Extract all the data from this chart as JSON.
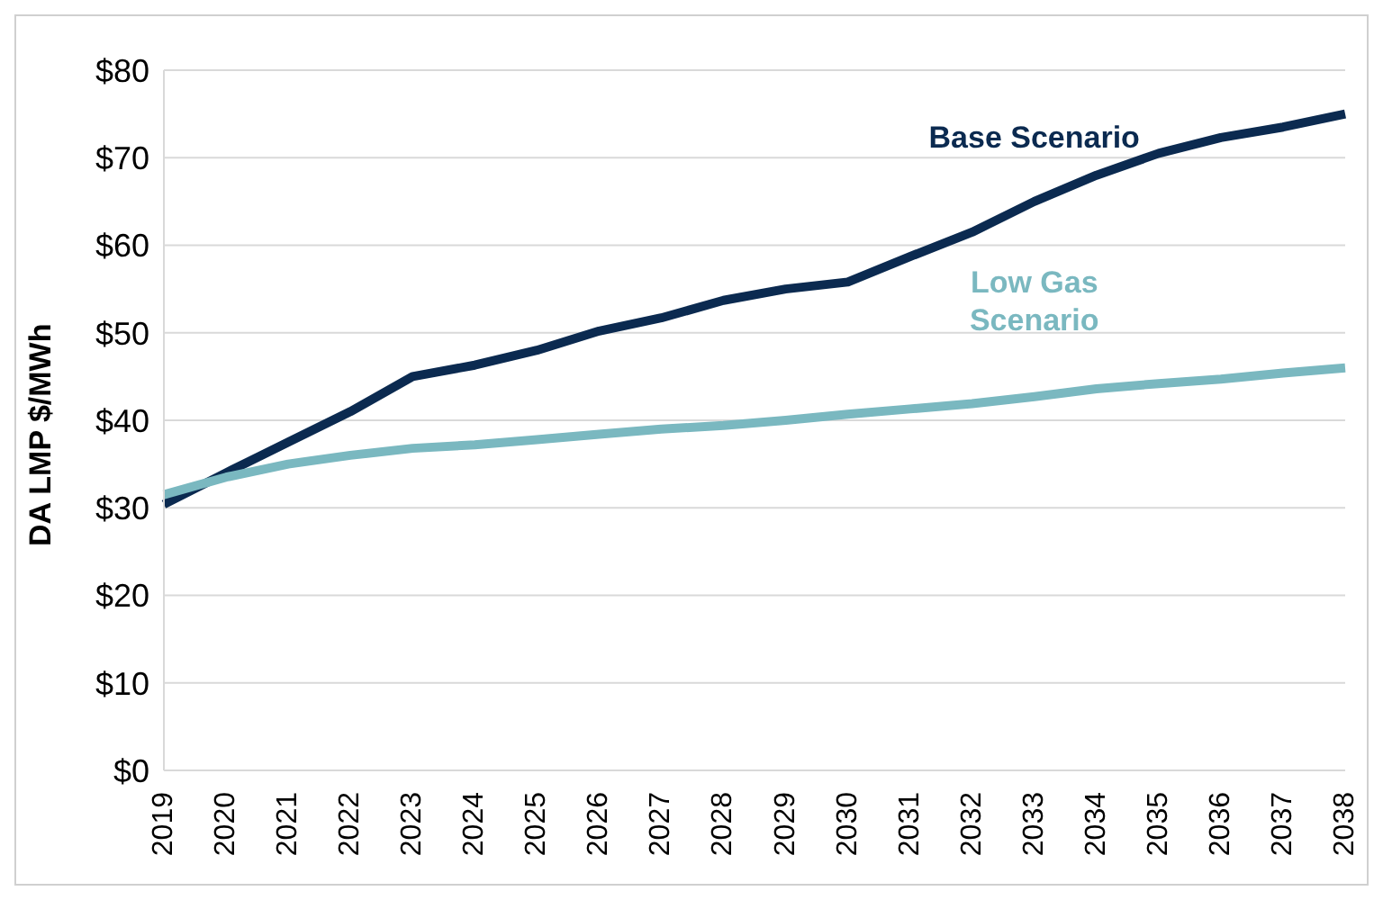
{
  "chart_data": {
    "type": "line",
    "ylabel": "DA LMP $/MWh",
    "categories": [
      "2019",
      "2020",
      "2021",
      "2022",
      "2023",
      "2024",
      "2025",
      "2026",
      "2027",
      "2028",
      "2029",
      "2030",
      "2031",
      "2032",
      "2033",
      "2034",
      "2035",
      "2036",
      "2037",
      "2038"
    ],
    "series": [
      {
        "name": "Base Scenario",
        "color": "#0b2a50",
        "values": [
          30.4,
          34,
          37.5,
          41,
          45,
          46.3,
          48,
          50.2,
          51.7,
          53.7,
          55,
          55.8,
          58.7,
          61.5,
          65,
          68,
          70.5,
          72.3,
          73.5,
          75
        ]
      },
      {
        "name": "Low Gas Scenario",
        "color": "#7ab8c0",
        "values": [
          31.5,
          33.5,
          35,
          36,
          36.8,
          37.2,
          37.8,
          38.4,
          39,
          39.4,
          40,
          40.7,
          41.3,
          41.9,
          42.7,
          43.6,
          44.2,
          44.7,
          45.4,
          46
        ]
      }
    ],
    "ylim": [
      0,
      80
    ],
    "yticks": [
      {
        "value": 0,
        "label": "$0"
      },
      {
        "value": 10,
        "label": "$10"
      },
      {
        "value": 20,
        "label": "$20"
      },
      {
        "value": 30,
        "label": "$30"
      },
      {
        "value": 40,
        "label": "$40"
      },
      {
        "value": 50,
        "label": "$50"
      },
      {
        "value": 60,
        "label": "$60"
      },
      {
        "value": 70,
        "label": "$70"
      },
      {
        "value": 80,
        "label": "$80"
      }
    ],
    "grid": "y",
    "legend": false,
    "marker": "none",
    "line_style": "solid"
  }
}
